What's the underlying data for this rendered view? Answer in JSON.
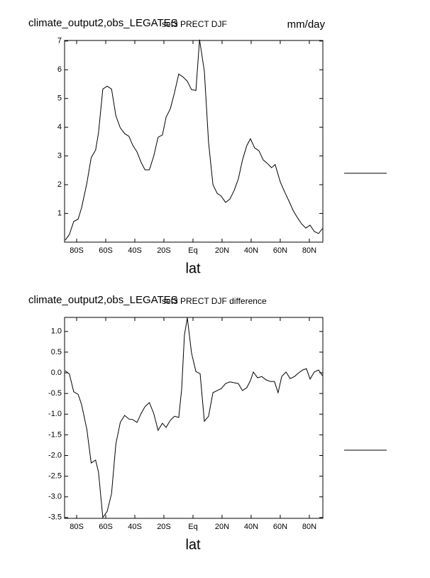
{
  "chart_data": [
    {
      "type": "line",
      "title": "climate_output2,obs_LEGATES",
      "subtitle": "set3 PRECT DJF",
      "units": "mm/day",
      "xlabel": "lat",
      "color": "#000000",
      "x": [
        -87.8,
        -85,
        -82,
        -79,
        -76.6,
        -73,
        -70,
        -67,
        -65,
        -62,
        -59,
        -56,
        -53,
        -50,
        -47,
        -44,
        -41.5,
        -38.5,
        -35.6,
        -33,
        -30,
        -27,
        -24,
        -21,
        -18.5,
        -15.6,
        -12.7,
        -9.8,
        -6.8,
        -3.9,
        -1,
        2,
        4.5,
        7.8,
        10.7,
        13.7,
        16.6,
        19.5,
        22.4,
        25.4,
        28.3,
        31.2,
        34,
        37,
        39.5,
        42.4,
        45.4,
        48.3,
        51.2,
        54,
        56.5,
        60,
        63,
        66,
        68.8,
        71.7,
        74.6,
        77.6,
        80.5,
        83.4,
        86.3,
        89
      ],
      "values": [
        0.07,
        0.27,
        0.72,
        0.8,
        1.2,
        2.05,
        2.94,
        3.2,
        3.8,
        5.33,
        5.43,
        5.33,
        4.4,
        3.98,
        3.78,
        3.68,
        3.38,
        3.14,
        2.77,
        2.52,
        2.52,
        2.99,
        3.65,
        3.73,
        4.35,
        4.64,
        5.2,
        5.85,
        5.75,
        5.6,
        5.31,
        5.28,
        7.05,
        5.95,
        3.48,
        2.0,
        1.7,
        1.6,
        1.38,
        1.5,
        1.8,
        2.2,
        2.86,
        3.36,
        3.6,
        3.28,
        3.18,
        2.86,
        2.74,
        2.59,
        2.7,
        2.1,
        1.75,
        1.43,
        1.11,
        0.86,
        0.64,
        0.49,
        0.59,
        0.37,
        0.3,
        0.47
      ],
      "xlim": [
        -88.3,
        89.3
      ],
      "xticks": [
        {
          "value": -80,
          "label": "80S"
        },
        {
          "value": -60,
          "label": "60S"
        },
        {
          "value": -40,
          "label": "40S"
        },
        {
          "value": -20,
          "label": "20S"
        },
        {
          "value": 0,
          "label": "Eq"
        },
        {
          "value": 20,
          "label": "20N"
        },
        {
          "value": 40,
          "label": "40N"
        },
        {
          "value": 60,
          "label": "60N"
        },
        {
          "value": 80,
          "label": "80N"
        }
      ],
      "ylim": [
        0,
        7.02
      ],
      "yticks": [
        1,
        2,
        3,
        4,
        5,
        6,
        7
      ]
    },
    {
      "type": "line",
      "title": "climate_output2,obs_LEGATES",
      "subtitle": "set3 PRECT DJF difference",
      "xlabel": "lat",
      "color": "#000000",
      "x": [
        -87.8,
        -85,
        -82,
        -79,
        -76.6,
        -73,
        -70,
        -67,
        -65,
        -62,
        -59,
        -56,
        -53,
        -50,
        -47,
        -44,
        -41.5,
        -38.5,
        -35.6,
        -33,
        -30,
        -27,
        -24,
        -21,
        -18.5,
        -15.6,
        -12.7,
        -9.8,
        -7.8,
        -5.9,
        -3.9,
        -1,
        2,
        4.9,
        7.8,
        10.7,
        13.7,
        16.6,
        19.5,
        22.4,
        25.4,
        28.3,
        31.2,
        34,
        37,
        39.5,
        41.5,
        44.4,
        47.3,
        50.2,
        53.2,
        56,
        58.5,
        61,
        64,
        66.8,
        69.8,
        72.7,
        75.6,
        78,
        80.5,
        83.4,
        86.3,
        89
      ],
      "values": [
        0.05,
        -0.03,
        -0.46,
        -0.52,
        -0.77,
        -1.37,
        -2.18,
        -2.11,
        -2.4,
        -3.5,
        -3.35,
        -2.92,
        -1.72,
        -1.2,
        -1.03,
        -1.12,
        -1.13,
        -1.2,
        -0.98,
        -0.82,
        -0.72,
        -0.98,
        -1.39,
        -1.22,
        -1.32,
        -1.15,
        -1.05,
        -1.08,
        -0.4,
        0.91,
        1.33,
        0.48,
        0.03,
        -0.02,
        -1.17,
        -1.05,
        -0.48,
        -0.43,
        -0.38,
        -0.26,
        -0.22,
        -0.24,
        -0.26,
        -0.43,
        -0.36,
        -0.19,
        0.02,
        -0.12,
        -0.09,
        -0.17,
        -0.21,
        -0.21,
        -0.48,
        -0.09,
        0.02,
        -0.14,
        -0.09,
        0.0,
        0.07,
        0.1,
        -0.15,
        0.02,
        0.07,
        -0.07
      ],
      "xlim": [
        -88.3,
        89.3
      ],
      "xticks": [
        {
          "value": -80,
          "label": "80S"
        },
        {
          "value": -60,
          "label": "60S"
        },
        {
          "value": -40,
          "label": "40S"
        },
        {
          "value": -20,
          "label": "20S"
        },
        {
          "value": 0,
          "label": "Eq"
        },
        {
          "value": 20,
          "label": "20N"
        },
        {
          "value": 40,
          "label": "40N"
        },
        {
          "value": 60,
          "label": "60N"
        },
        {
          "value": 80,
          "label": "80N"
        }
      ],
      "ylim": [
        -3.52,
        1.34
      ],
      "yticks": [
        {
          "value": 1,
          "label": "1.0"
        },
        0.5,
        {
          "value": 0,
          "label": "0.0"
        },
        -0.5,
        {
          "value": -1,
          "label": "-1.0"
        },
        -1.5,
        {
          "value": -2,
          "label": "-2.0"
        },
        -2.5,
        {
          "value": -3,
          "label": "-3.0"
        },
        -3.5
      ]
    }
  ]
}
